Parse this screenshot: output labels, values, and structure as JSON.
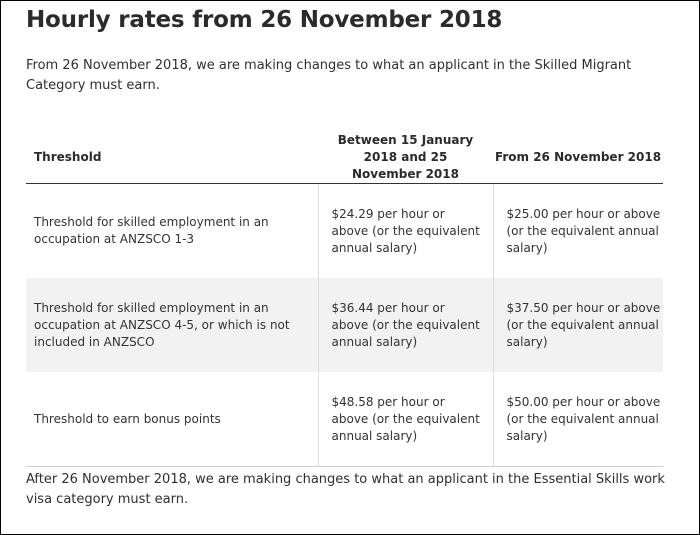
{
  "title": "Hourly rates from 26 November 2018",
  "intro": "From 26 November 2018, we are making changes to what an applicant in the Skilled Migrant Category must earn.",
  "table": {
    "headers": [
      "Threshold",
      "Between 15 January 2018 and 25 November 2018",
      "From 26 November 2018"
    ],
    "rows": [
      {
        "threshold": "Threshold for skilled employment in an occupation at ANZSCO 1-3",
        "between": "$24.29 per hour or above (or the equivalent annual salary)",
        "from": "$25.00 per hour or above (or the equivalent annual salary)"
      },
      {
        "threshold": "Threshold for skilled employment in an occupation at ANZSCO 4-5, or which is not included in ANZSCO",
        "between": "$36.44 per hour or above (or the equivalent annual salary)",
        "from": "$37.50 per hour or above (or the equivalent annual salary)"
      },
      {
        "threshold": "Threshold to earn bonus points",
        "between": "$48.58 per hour or above (or the equivalent annual salary)",
        "from": "$50.00 per hour or above (or the equivalent annual salary)"
      }
    ]
  },
  "after": "After 26 November 2018, we are making changes to what an applicant in the Essential Skills work visa category must earn."
}
